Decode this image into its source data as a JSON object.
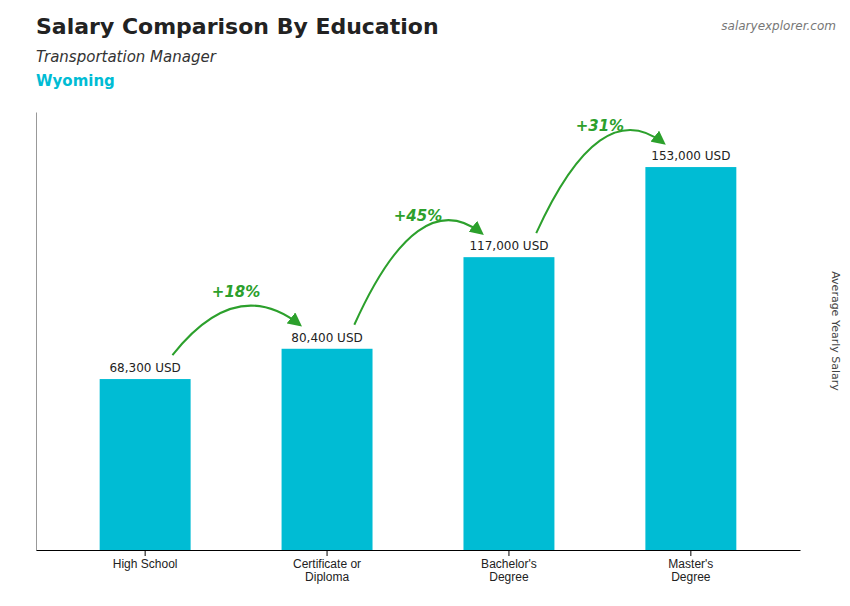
{
  "chart_data": {
    "type": "bar",
    "title": "Salary Comparison By Education",
    "subtitle": "Transportation Manager",
    "location": "Wyoming",
    "source": "salaryexplorer.com",
    "y_label": "Average Yearly Salary",
    "categories": [
      "High School",
      "Certificate or\nDiploma",
      "Bachelor's\nDegree",
      "Master's\nDegree"
    ],
    "values": [
      68300,
      80400,
      117000,
      153000
    ],
    "value_labels": [
      "68,300 USD",
      "80,400 USD",
      "117,000 USD",
      "153,000 USD"
    ],
    "data_labels": true,
    "annotations": [
      "+18%",
      "+45%",
      "+31%"
    ],
    "color": "#00bcd4",
    "ylim": [
      0,
      175000
    ],
    "tick_labels": "x"
  }
}
